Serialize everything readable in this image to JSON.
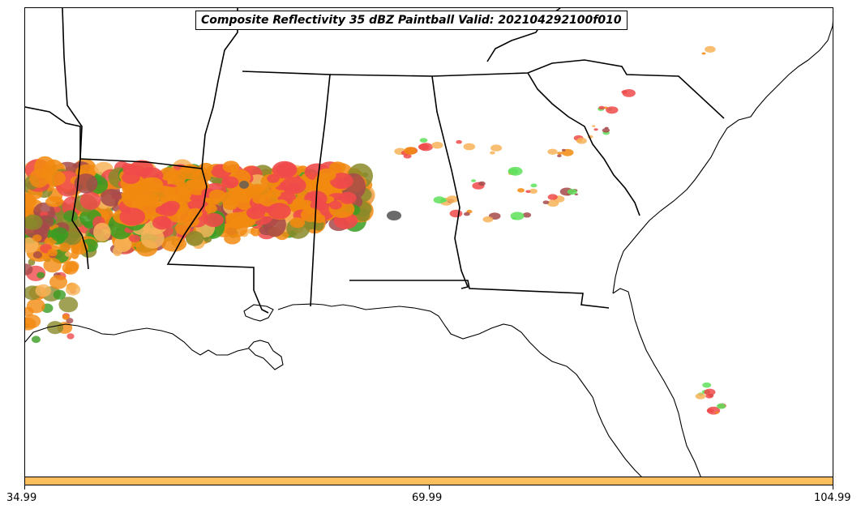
{
  "title": "Composite Reflectivity 35 dBZ Paintball Valid: 202104292100f010",
  "colors": {
    "red": "#f04a4a",
    "orange": "#f28a10",
    "light_orange": "#f7b45a",
    "green": "#3a9c22",
    "light_green": "#5ee05a",
    "olive": "#8a8a2a",
    "brown": "#a64a4a",
    "gray": "#5a5a5a",
    "colorbar": "#fdbf5e"
  },
  "colorbar": {
    "ticks": [
      "34.99",
      "69.99",
      "104.99"
    ]
  }
}
